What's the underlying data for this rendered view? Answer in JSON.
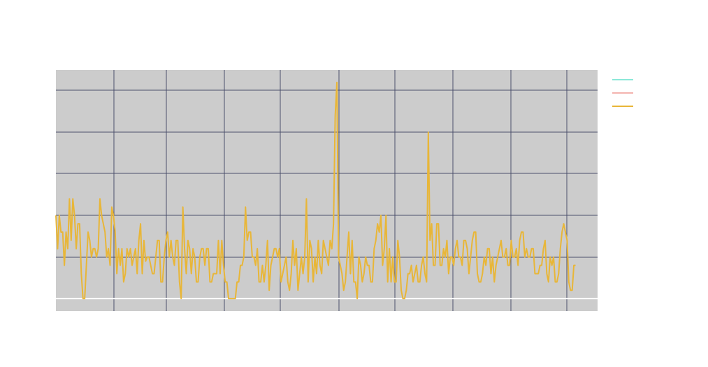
{
  "chart_data": {
    "type": "line",
    "title": "",
    "xlabel": "",
    "ylabel": "",
    "grid": true,
    "legend_position": "right",
    "colors": {
      "plot_background": "#cccccc",
      "grid": "#4b4f6b",
      "zero_line": "#ffffff",
      "series_1": "#8be8d8",
      "series_2": "#f4b3ae",
      "series_3": "#e8b638"
    },
    "xlim": [
      0,
      320
    ],
    "ylim": [
      -0.3,
      5.5
    ],
    "series": [
      {
        "values": []
      },
      {
        "values": []
      },
      {
        "values": [
          2,
          1.2,
          2,
          1.6,
          1.6,
          0.8,
          1.6,
          1.2,
          2.4,
          1.4,
          2.4,
          2,
          1.2,
          1.8,
          1.8,
          0.6,
          0,
          0,
          0.8,
          1.6,
          1.4,
          1,
          1.2,
          1.2,
          1,
          1.2,
          2.4,
          2,
          1.8,
          1.6,
          1,
          1.2,
          0.8,
          2.2,
          2,
          1.6,
          0.6,
          1.2,
          0.8,
          1.2,
          0.4,
          0.6,
          1.2,
          1,
          1.2,
          0.8,
          1,
          1.2,
          0.6,
          1.4,
          1.8,
          0.6,
          1.4,
          0.9,
          1,
          1,
          0.8,
          0.6,
          0.6,
          1,
          1.4,
          1.4,
          0.4,
          0.4,
          1,
          1.4,
          1.6,
          1,
          1.4,
          1,
          0.8,
          1.4,
          1.4,
          0.4,
          0,
          2.2,
          1.2,
          0.6,
          1.4,
          1.2,
          0.6,
          1.2,
          1,
          0.4,
          0.4,
          1,
          1.2,
          1.2,
          0.8,
          1.2,
          1.2,
          0.4,
          0.4,
          0.6,
          0.6,
          0.6,
          1.4,
          0.6,
          1.4,
          0.8,
          0.4,
          0.4,
          0,
          0,
          0,
          0,
          0,
          0.4,
          0.4,
          0.8,
          0.8,
          1,
          2.2,
          1.4,
          1.6,
          1.6,
          1,
          1,
          0.8,
          1.2,
          0.4,
          0.4,
          0.8,
          0.4,
          0.8,
          1.4,
          0.2,
          0.8,
          1,
          1.2,
          1.2,
          1,
          1.2,
          0.4,
          0.6,
          0.8,
          1,
          0.4,
          0.2,
          0.6,
          1.4,
          0.8,
          1.2,
          0.2,
          0.6,
          1,
          0.6,
          1,
          2.4,
          0.4,
          1.4,
          1.2,
          0.4,
          1,
          0.6,
          1.4,
          0.8,
          0.6,
          1.4,
          1.2,
          1,
          0.8,
          1.4,
          1.2,
          1.8,
          4.4,
          5.2,
          1,
          0.8,
          0.6,
          0.2,
          0.4,
          1,
          1.6,
          0.6,
          1.4,
          0.4,
          0.4,
          0,
          1,
          0.8,
          0.4,
          0.6,
          1,
          0.8,
          0.8,
          0.4,
          0.4,
          1.2,
          1.4,
          1.8,
          1.6,
          2,
          0.8,
          1.2,
          2,
          0.4,
          1.2,
          0.4,
          1,
          0.4,
          0.4,
          1.4,
          1,
          0.2,
          0,
          0,
          0.2,
          0.6,
          0.6,
          0.8,
          0.4,
          0.6,
          0.8,
          0.4,
          0.4,
          0.8,
          1,
          0.6,
          0.4,
          4,
          1.4,
          1.8,
          0.8,
          0.8,
          1.8,
          1.8,
          0.8,
          0.8,
          1.2,
          1,
          1.4,
          0.6,
          1,
          1,
          0.8,
          1.2,
          1.4,
          1,
          1,
          0.8,
          1.4,
          1.4,
          1.2,
          0.6,
          1,
          1.4,
          1.6,
          1.6,
          0.6,
          0.4,
          0.4,
          0.6,
          1,
          0.8,
          1.2,
          1.2,
          0.6,
          1,
          0.4,
          0.8,
          1,
          1.2,
          1.4,
          1,
          1,
          1.2,
          0.8,
          0.8,
          1.4,
          1,
          1,
          1.2,
          0.8,
          1.4,
          1.6,
          1.6,
          1,
          1.2,
          1,
          1,
          1.2,
          1.2,
          0.6,
          0.6,
          0.6,
          0.8,
          0.8,
          1.2,
          1.4,
          0.6,
          0.4,
          1,
          0.8,
          1,
          0.4,
          0.4,
          0.6,
          1.2,
          1.6,
          1.8,
          1.6,
          1.4,
          0.4,
          0.2,
          0.2,
          0.8,
          0.8
        ]
      }
    ]
  }
}
